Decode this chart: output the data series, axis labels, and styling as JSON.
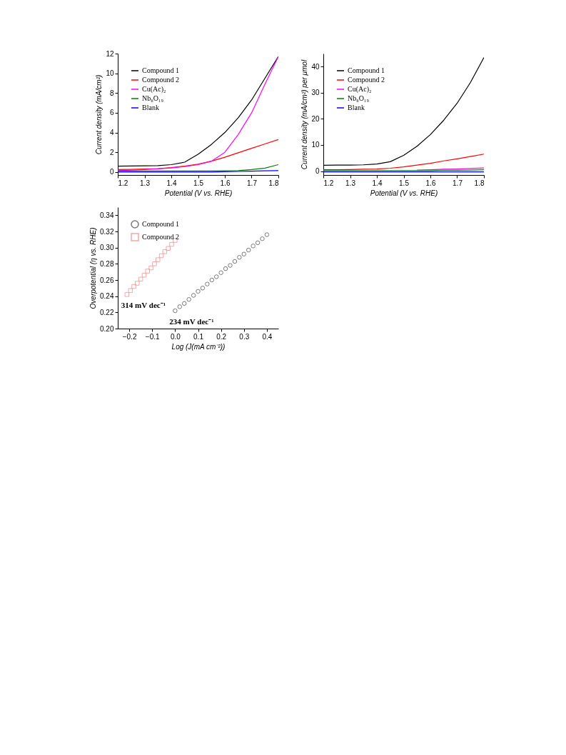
{
  "chart_data": [
    {
      "type": "line",
      "xlabel": "Potential (V vs. RHE)",
      "ylabel": "Current density (mA/cm²)",
      "x": [
        1.2,
        1.25,
        1.3,
        1.35,
        1.4,
        1.45,
        1.5,
        1.55,
        1.6,
        1.65,
        1.7,
        1.75,
        1.8
      ],
      "xlim": [
        1.2,
        1.8
      ],
      "xticks": [
        1.2,
        1.3,
        1.4,
        1.5,
        1.6,
        1.7,
        1.8
      ],
      "ylim": [
        -0.3,
        12
      ],
      "yticks": [
        0,
        2,
        4,
        6,
        8,
        10,
        12
      ],
      "grid": false,
      "legend": "top left",
      "series": [
        {
          "name": "Compound 1",
          "color": "#000000",
          "values": [
            0.6,
            0.62,
            0.63,
            0.65,
            0.75,
            1.0,
            1.8,
            2.8,
            4.0,
            5.5,
            7.3,
            9.5,
            11.7
          ]
        },
        {
          "name": "Compound 2",
          "color": "#ff0000",
          "values": [
            0.25,
            0.27,
            0.3,
            0.35,
            0.45,
            0.6,
            0.8,
            1.1,
            1.5,
            1.95,
            2.4,
            2.85,
            3.3
          ]
        },
        {
          "name": "Cu(Ac)₂",
          "color": "#ff00ff",
          "values": [
            0.15,
            0.2,
            0.25,
            0.33,
            0.42,
            0.55,
            0.75,
            1.1,
            2.0,
            3.8,
            6.0,
            8.9,
            11.7
          ]
        },
        {
          "name": "Nb₆O₁₉",
          "color": "#008000",
          "values": [
            0.1,
            0.1,
            0.1,
            0.1,
            0.1,
            0.1,
            0.1,
            0.1,
            0.12,
            0.15,
            0.25,
            0.4,
            0.75
          ]
        },
        {
          "name": "Blank",
          "color": "#0000ff",
          "values": [
            0.0,
            0.0,
            0.0,
            0.0,
            0.0,
            0.0,
            0.0,
            0.0,
            0.03,
            0.06,
            0.09,
            0.12,
            0.15
          ]
        }
      ]
    },
    {
      "type": "line",
      "xlabel": "Potential (V vs. RHE)",
      "ylabel": "Current density (mA/cm²) per μmol",
      "x": [
        1.2,
        1.25,
        1.3,
        1.35,
        1.4,
        1.45,
        1.5,
        1.55,
        1.6,
        1.65,
        1.7,
        1.75,
        1.8
      ],
      "xlim": [
        1.2,
        1.8
      ],
      "xticks": [
        1.2,
        1.3,
        1.4,
        1.5,
        1.6,
        1.7,
        1.8
      ],
      "ylim": [
        -1.5,
        45
      ],
      "yticks": [
        0,
        10,
        20,
        30,
        40
      ],
      "grid": false,
      "legend": "top left",
      "series": [
        {
          "name": "Compound 1",
          "color": "#000000",
          "values": [
            2.2,
            2.3,
            2.3,
            2.4,
            2.7,
            3.6,
            6.0,
            9.5,
            14.0,
            19.5,
            26.0,
            34.0,
            43.5
          ]
        },
        {
          "name": "Compound 2",
          "color": "#ff0000",
          "values": [
            0.5,
            0.5,
            0.6,
            0.7,
            0.8,
            1.1,
            1.6,
            2.3,
            3.0,
            3.9,
            4.7,
            5.6,
            6.5
          ]
        },
        {
          "name": "Cu(Ac)₂",
          "color": "#ff00ff",
          "values": [
            null,
            null,
            null,
            null,
            null,
            null,
            null,
            0.4,
            0.5,
            0.7,
            0.8,
            1.0,
            1.2
          ]
        },
        {
          "name": "Nb₆O₁₉",
          "color": "#008000",
          "values": [
            0.2,
            0.2,
            0.2,
            0.2,
            0.2,
            0.2,
            0.2,
            0.2,
            0.2,
            0.3,
            0.3,
            0.4,
            0.5
          ]
        },
        {
          "name": "Blank",
          "color": "#0000ff",
          "values": [
            -0.3,
            -0.3,
            -0.3,
            -0.3,
            -0.3,
            -0.3,
            -0.3,
            -0.3,
            -0.3,
            -0.3,
            -0.3,
            -0.3,
            -0.3
          ]
        }
      ]
    },
    {
      "type": "scatter",
      "xlabel": "Log (J(mA cm⁻²))",
      "ylabel": "Overpotential (η vs. RHE)",
      "xlim": [
        -0.25,
        0.45
      ],
      "xticks": [
        -0.2,
        -0.1,
        {
          "value": 0,
          "label": "0.0"
        },
        0.1,
        0.2,
        0.3,
        0.4
      ],
      "ylim": [
        0.2,
        0.35
      ],
      "yticks": [
        {
          "value": 0.2,
          "label": "0.20"
        },
        0.22,
        0.24,
        0.26,
        0.28,
        {
          "value": 0.3,
          "label": "0.30"
        },
        0.32,
        0.34
      ],
      "grid": false,
      "legend": "top left",
      "annotations": [
        {
          "text": "314 mV dec⁻¹",
          "x": -0.21,
          "y": 0.242
        },
        {
          "text": "234 mV dec⁻¹",
          "x": 0,
          "y": 0.222
        }
      ],
      "series": [
        {
          "name": "Compound 1",
          "color": "#404040",
          "marker": "circle",
          "x": [
            0,
            0.02,
            0.04,
            0.06,
            0.08,
            0.1,
            0.12,
            0.14,
            0.16,
            0.18,
            0.2,
            0.22,
            0.24,
            0.26,
            0.28,
            0.3,
            0.32,
            0.34,
            0.36,
            0.38,
            0.4
          ],
          "values": [
            0.222,
            0.227,
            0.231,
            0.236,
            0.241,
            0.246,
            0.25,
            0.255,
            0.26,
            0.264,
            0.269,
            0.274,
            0.278,
            0.283,
            0.288,
            0.292,
            0.297,
            0.302,
            0.306,
            0.311,
            0.316
          ]
        },
        {
          "name": "Compound 2",
          "color": "#f08080",
          "marker": "square",
          "x": [
            -0.21,
            -0.195,
            -0.18,
            -0.165,
            -0.15,
            -0.135,
            -0.12,
            -0.105,
            -0.09,
            -0.075,
            -0.06,
            -0.045,
            -0.03,
            -0.015,
            0
          ],
          "values": [
            0.242,
            0.247,
            0.252,
            0.256,
            0.261,
            0.266,
            0.271,
            0.275,
            0.28,
            0.285,
            0.29,
            0.295,
            0.299,
            0.304,
            0.309
          ]
        }
      ]
    }
  ]
}
